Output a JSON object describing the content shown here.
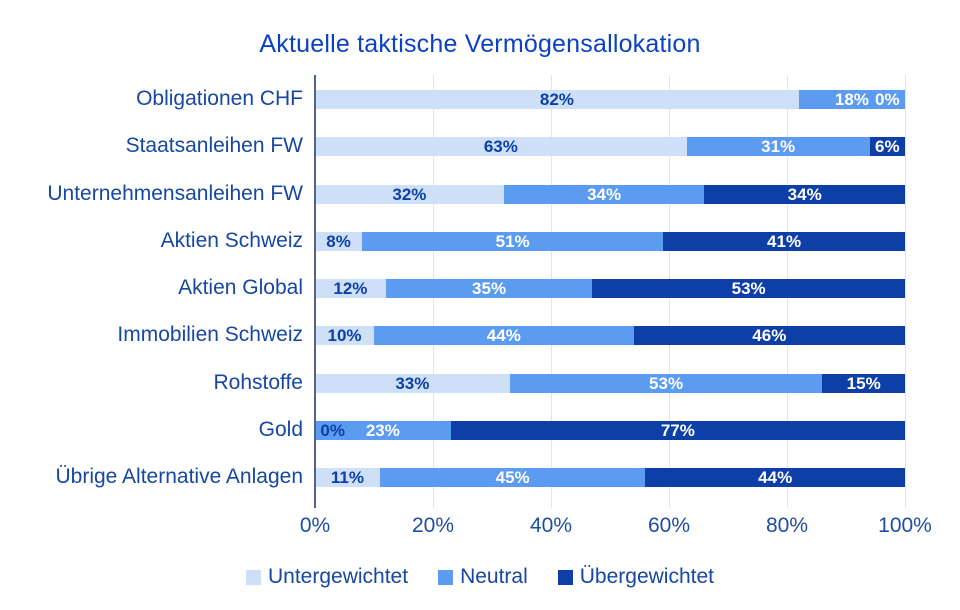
{
  "title": "Aktuelle taktische Vermögensallokation",
  "colors": {
    "title_text": "#0c41c4",
    "label_text": "#1647a3",
    "tick_text": "#1e4da6",
    "axis_line": "#51638a",
    "grid_line": "#dde5f1",
    "value_label_on_light": "#0d3fa6",
    "value_label_on_dark": "#ffffff"
  },
  "chart_data": {
    "type": "bar",
    "orientation": "horizontal",
    "stacked": true,
    "title": "Aktuelle taktische Vermögensallokation",
    "categories": [
      "Obligationen CHF",
      "Staatsanleihen FW",
      "Unternehmensanleihen FW",
      "Aktien Schweiz",
      "Aktien Global",
      "Immobilien Schweiz",
      "Rohstoffe",
      "Gold",
      "Übrige Alternative Anlagen"
    ],
    "series": [
      {
        "name": "Untergewichtet",
        "color": "#cde0f7",
        "values": [
          82,
          63,
          32,
          8,
          12,
          10,
          33,
          0,
          11
        ]
      },
      {
        "name": "Neutral",
        "color": "#5b9bf0",
        "values": [
          18,
          31,
          34,
          51,
          35,
          44,
          53,
          23,
          45
        ]
      },
      {
        "name": "Übergewichtet",
        "color": "#0e3fa6",
        "values": [
          0,
          6,
          34,
          41,
          53,
          46,
          15,
          77,
          44
        ]
      }
    ],
    "x_ticks": [
      "0%",
      "20%",
      "40%",
      "60%",
      "80%",
      "100%"
    ],
    "xlim": [
      0,
      100
    ],
    "grid": true,
    "legend_position": "bottom",
    "value_label_format": "{v}%"
  },
  "legend": {
    "items": [
      {
        "label": "Untergewichtet"
      },
      {
        "label": "Neutral"
      },
      {
        "label": "Übergewichtet"
      }
    ]
  }
}
